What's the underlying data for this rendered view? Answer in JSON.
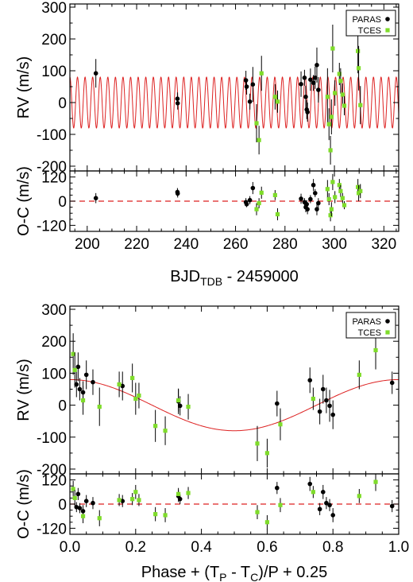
{
  "figure": {
    "background": "#ffffff",
    "axis_color": "#000000"
  },
  "chart_data": [
    {
      "type": "scatter",
      "panel": "time-series RV",
      "xlim": [
        193,
        326
      ],
      "ylim": [
        -215,
        310
      ],
      "ylabel": "RV (m/s)",
      "yticks": [
        300,
        200,
        100,
        0,
        -100,
        -200
      ],
      "xticks": [
        200,
        220,
        240,
        260,
        280,
        300,
        320
      ],
      "legend": {
        "placement": "top-right",
        "entries": [
          {
            "label": "PARAS",
            "marker": "circle",
            "color": "#000000"
          },
          {
            "label": "TCES",
            "marker": "square",
            "color": "#7fdc2a"
          }
        ]
      },
      "model": {
        "type": "sinusoid",
        "amplitude": 80,
        "period_days": 3.07,
        "phase_ref_x": 193.0,
        "color": "#dd2222"
      },
      "series": [
        {
          "name": "PARAS",
          "color": "#000000",
          "points": [
            [
              203.5,
              92,
              45
            ],
            [
              236.5,
              12,
              20
            ],
            [
              236.6,
              -2,
              20
            ],
            [
              264.2,
              70,
              30
            ],
            [
              264.5,
              50,
              25
            ],
            [
              265.8,
              3,
              25
            ],
            [
              267.0,
              57,
              55
            ],
            [
              286.5,
              58,
              40
            ],
            [
              287.9,
              78,
              25
            ],
            [
              288.4,
              18,
              35
            ],
            [
              288.8,
              -22,
              30
            ],
            [
              289.1,
              -30,
              30
            ],
            [
              290.3,
              72,
              35
            ],
            [
              291.5,
              62,
              25
            ],
            [
              292.2,
              78,
              35
            ],
            [
              292.9,
              118,
              55
            ],
            [
              293.5,
              40,
              40
            ]
          ]
        },
        {
          "name": "TCES",
          "color": "#7fdc2a",
          "points": [
            [
              268.5,
              -65,
              60
            ],
            [
              269.5,
              -118,
              45
            ],
            [
              270.5,
              92,
              55
            ],
            [
              276.0,
              18,
              40
            ],
            [
              277.0,
              3,
              35
            ],
            [
              297.2,
              18,
              90
            ],
            [
              297.8,
              -68,
              50
            ],
            [
              298.4,
              -150,
              45
            ],
            [
              298.8,
              -45,
              55
            ],
            [
              299.3,
              170,
              75
            ],
            [
              300.2,
              30,
              40
            ],
            [
              302.0,
              90,
              35
            ],
            [
              302.5,
              68,
              40
            ],
            [
              303.3,
              25,
              35
            ],
            [
              304.0,
              -10,
              30
            ],
            [
              309.5,
              162,
              70
            ],
            [
              309.8,
              108,
              70
            ],
            [
              310.5,
              -8,
              60
            ]
          ]
        }
      ]
    },
    {
      "type": "scatter",
      "panel": "time-series residuals",
      "xlim": [
        193,
        326
      ],
      "ylim": [
        -150,
        150
      ],
      "ylabel": "O-C (m/s)",
      "xlabel_main": "BJD",
      "xlabel_sub": "TDB",
      "xlabel_tail": " - 2459000",
      "yticks": [
        120,
        0,
        -120
      ],
      "xticks": [
        200,
        220,
        240,
        260,
        280,
        300,
        320
      ],
      "reference_line": {
        "y": 0,
        "style": "dashed",
        "color": "#dd2222"
      },
      "series": [
        {
          "name": "PARAS",
          "color": "#000000",
          "points": [
            [
              203.5,
              15,
              25
            ],
            [
              236.5,
              45,
              20
            ],
            [
              236.6,
              38,
              20
            ],
            [
              264.2,
              -5,
              20
            ],
            [
              264.5,
              -15,
              15
            ],
            [
              265.8,
              5,
              20
            ],
            [
              267.0,
              65,
              30
            ],
            [
              286.5,
              12,
              25
            ],
            [
              287.9,
              -5,
              20
            ],
            [
              288.4,
              -30,
              25
            ],
            [
              288.8,
              -15,
              20
            ],
            [
              289.1,
              -40,
              25
            ],
            [
              290.3,
              10,
              20
            ],
            [
              291.5,
              80,
              30
            ],
            [
              292.2,
              40,
              20
            ],
            [
              292.9,
              -40,
              30
            ],
            [
              293.5,
              -10,
              25
            ]
          ]
        },
        {
          "name": "TCES",
          "color": "#7fdc2a",
          "points": [
            [
              268.5,
              -40,
              30
            ],
            [
              269.5,
              -10,
              25
            ],
            [
              270.5,
              42,
              30
            ],
            [
              276.0,
              30,
              25
            ],
            [
              277.0,
              -65,
              30
            ],
            [
              297.2,
              60,
              45
            ],
            [
              297.8,
              10,
              30
            ],
            [
              298.4,
              -70,
              30
            ],
            [
              298.8,
              -40,
              35
            ],
            [
              299.3,
              95,
              40
            ],
            [
              300.2,
              20,
              30
            ],
            [
              302.0,
              80,
              30
            ],
            [
              302.5,
              50,
              30
            ],
            [
              303.3,
              15,
              25
            ],
            [
              304.0,
              -20,
              20
            ],
            [
              309.5,
              70,
              40
            ],
            [
              309.8,
              40,
              40
            ],
            [
              310.5,
              50,
              35
            ]
          ]
        }
      ]
    },
    {
      "type": "scatter",
      "panel": "phase-folded RV",
      "xlim": [
        0,
        1
      ],
      "ylim": [
        -215,
        310
      ],
      "ylabel": "RV (m/s)",
      "yticks": [
        300,
        200,
        100,
        0,
        -100,
        -200
      ],
      "xticks": [
        0.0,
        0.2,
        0.4,
        0.6,
        0.8,
        1.0
      ],
      "legend": {
        "placement": "top-right",
        "entries": [
          {
            "label": "PARAS",
            "marker": "circle",
            "color": "#000000"
          },
          {
            "label": "TCES",
            "marker": "square",
            "color": "#7fdc2a"
          }
        ]
      },
      "model": {
        "type": "phase_sinusoid",
        "amplitude": 80,
        "color": "#dd2222"
      },
      "series": [
        {
          "name": "PARAS",
          "color": "#000000",
          "points": [
            [
              0.02,
              65,
              40
            ],
            [
              0.025,
              120,
              45
            ],
            [
              0.03,
              50,
              35
            ],
            [
              0.04,
              40,
              35
            ],
            [
              0.05,
              95,
              45
            ],
            [
              0.07,
              72,
              40
            ],
            [
              0.16,
              60,
              45
            ],
            [
              0.33,
              12,
              40
            ],
            [
              0.335,
              -2,
              30
            ],
            [
              0.63,
              5,
              40
            ],
            [
              0.73,
              78,
              40
            ],
            [
              0.76,
              -20,
              40
            ],
            [
              0.77,
              50,
              45
            ],
            [
              0.78,
              15,
              40
            ],
            [
              0.79,
              -2,
              50
            ],
            [
              0.8,
              -30,
              45
            ],
            [
              0.98,
              70,
              35
            ]
          ]
        },
        {
          "name": "TCES",
          "color": "#7fdc2a",
          "points": [
            [
              0.01,
              160,
              65
            ],
            [
              0.015,
              110,
              55
            ],
            [
              0.04,
              15,
              45
            ],
            [
              0.09,
              -5,
              60
            ],
            [
              0.15,
              65,
              40
            ],
            [
              0.19,
              85,
              45
            ],
            [
              0.2,
              20,
              50
            ],
            [
              0.21,
              30,
              40
            ],
            [
              0.26,
              -65,
              50
            ],
            [
              0.29,
              -80,
              45
            ],
            [
              0.33,
              15,
              35
            ],
            [
              0.36,
              -5,
              40
            ],
            [
              0.57,
              -120,
              55
            ],
            [
              0.6,
              -150,
              45
            ],
            [
              0.64,
              -60,
              50
            ],
            [
              0.74,
              20,
              35
            ],
            [
              0.88,
              95,
              45
            ],
            [
              0.93,
              172,
              60
            ]
          ]
        }
      ]
    },
    {
      "type": "scatter",
      "panel": "phase-folded residuals",
      "xlim": [
        0,
        1
      ],
      "ylim": [
        -150,
        150
      ],
      "ylabel": "O-C (m/s)",
      "xlabel_main": "Phase + (T",
      "xlabel_sub1": "P",
      "xlabel_mid": " - T",
      "xlabel_sub2": "C",
      "xlabel_tail": ")/P + 0.25",
      "xticklabels": [
        "0.0",
        "0.2",
        "0.4",
        "0.6",
        "0.8",
        "1.0"
      ],
      "yticks": [
        120,
        0,
        -120
      ],
      "xticks": [
        0.0,
        0.2,
        0.4,
        0.6,
        0.8,
        1.0
      ],
      "reference_line": {
        "y": 0,
        "style": "dashed",
        "color": "#dd2222"
      },
      "series": [
        {
          "name": "PARAS",
          "color": "#000000",
          "points": [
            [
              0.02,
              -15,
              25
            ],
            [
              0.025,
              50,
              30
            ],
            [
              0.03,
              -20,
              25
            ],
            [
              0.04,
              -35,
              30
            ],
            [
              0.05,
              15,
              30
            ],
            [
              0.07,
              5,
              30
            ],
            [
              0.16,
              15,
              30
            ],
            [
              0.33,
              40,
              30
            ],
            [
              0.335,
              25,
              25
            ],
            [
              0.63,
              80,
              30
            ],
            [
              0.73,
              100,
              35
            ],
            [
              0.76,
              -25,
              30
            ],
            [
              0.77,
              60,
              35
            ],
            [
              0.78,
              5,
              30
            ],
            [
              0.79,
              -5,
              30
            ],
            [
              0.8,
              -55,
              35
            ],
            [
              0.98,
              -10,
              30
            ]
          ]
        },
        {
          "name": "TCES",
          "color": "#7fdc2a",
          "points": [
            [
              0.01,
              75,
              40
            ],
            [
              0.015,
              30,
              40
            ],
            [
              0.04,
              -60,
              35
            ],
            [
              0.09,
              -70,
              40
            ],
            [
              0.15,
              20,
              30
            ],
            [
              0.19,
              25,
              30
            ],
            [
              0.2,
              60,
              35
            ],
            [
              0.21,
              20,
              30
            ],
            [
              0.26,
              -50,
              35
            ],
            [
              0.29,
              -55,
              35
            ],
            [
              0.33,
              50,
              30
            ],
            [
              0.36,
              55,
              30
            ],
            [
              0.57,
              -40,
              35
            ],
            [
              0.6,
              -90,
              35
            ],
            [
              0.64,
              -5,
              35
            ],
            [
              0.74,
              60,
              30
            ],
            [
              0.88,
              40,
              35
            ],
            [
              0.93,
              110,
              45
            ]
          ]
        }
      ]
    }
  ]
}
